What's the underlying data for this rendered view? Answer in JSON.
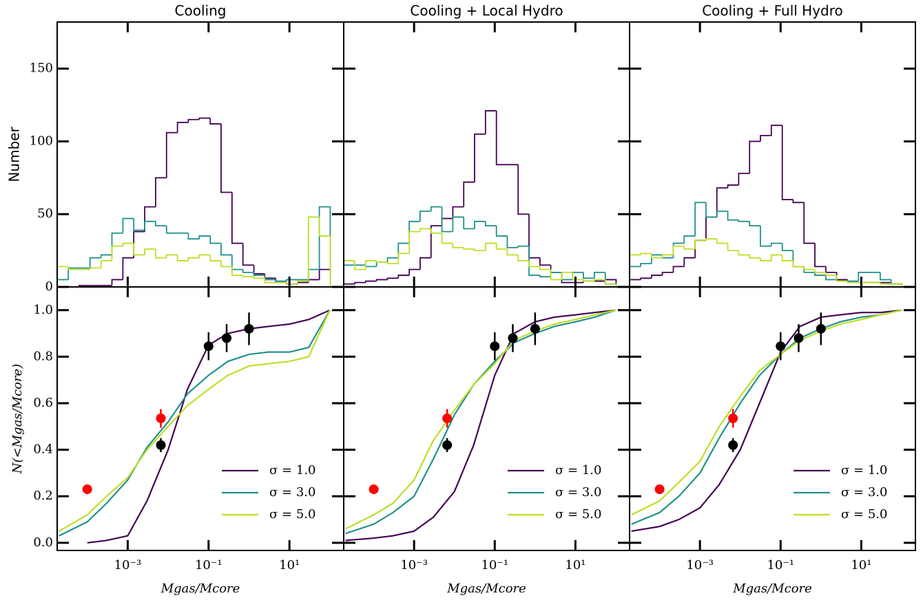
{
  "chart_data": [
    {
      "type": "histogram",
      "title": "Cooling",
      "y_label": "Number",
      "xscale": "log",
      "bins": [
        1.82e-05,
        3.39e-05,
        6.31e-05,
        0.000117,
        0.000219,
        0.000407,
        0.000759,
        0.00141,
        0.00263,
        0.0049,
        0.00912,
        0.017,
        0.0316,
        0.0589,
        0.11,
        0.204,
        0.38,
        0.708,
        1.32,
        2.45,
        4.57,
        8.51,
        15.8,
        29.5,
        55.0,
        102
      ],
      "series": [
        {
          "color": "#440154",
          "values": [
            0,
            0,
            1,
            1,
            1,
            5,
            20,
            38,
            55,
            75,
            106,
            113,
            115,
            116,
            112,
            65,
            30,
            15,
            9,
            6,
            3,
            2,
            3,
            5,
            12
          ]
        },
        {
          "color": "#21918c",
          "values": [
            5,
            13,
            13,
            20,
            22,
            37,
            47,
            39,
            45,
            42,
            37,
            37,
            33,
            35,
            30,
            22,
            12,
            10,
            8,
            5,
            4,
            5,
            5,
            12,
            55
          ]
        },
        {
          "color": "#bddf26",
          "values": [
            14,
            12,
            12,
            13,
            18,
            28,
            30,
            22,
            26,
            20,
            22,
            18,
            20,
            22,
            18,
            14,
            8,
            7,
            6,
            3,
            3,
            2,
            4,
            48,
            35
          ]
        }
      ],
      "xlim": [
        1.8e-05,
        220
      ],
      "xticks": [
        0.001,
        0.1,
        10
      ],
      "ylim": [
        0,
        182
      ],
      "yticks": [
        0,
        50,
        100,
        150
      ],
      "show_xtick_labels": false,
      "show_ytick_labels": true
    },
    {
      "type": "histogram",
      "title": "Cooling + Local Hydro",
      "xscale": "log",
      "bins": [
        1.82e-05,
        3.39e-05,
        6.31e-05,
        0.000117,
        0.000219,
        0.000407,
        0.000759,
        0.00141,
        0.00263,
        0.0049,
        0.00912,
        0.017,
        0.0316,
        0.0589,
        0.11,
        0.204,
        0.38,
        0.708,
        1.32,
        2.45,
        4.57,
        8.51,
        15.8,
        29.5,
        55.0,
        102
      ],
      "series": [
        {
          "color": "#440154",
          "values": [
            2,
            3,
            4,
            5,
            6,
            8,
            12,
            20,
            42,
            47,
            55,
            72,
            105,
            121,
            84,
            84,
            50,
            20,
            15,
            10,
            3,
            3,
            4,
            4,
            5
          ]
        },
        {
          "color": "#21918c",
          "values": [
            15,
            15,
            14,
            17,
            20,
            30,
            45,
            52,
            55,
            38,
            48,
            40,
            45,
            42,
            35,
            27,
            28,
            8,
            7,
            10,
            5,
            10,
            6,
            10,
            2
          ]
        },
        {
          "color": "#bddf26",
          "values": [
            18,
            12,
            18,
            17,
            16,
            23,
            38,
            40,
            37,
            30,
            27,
            26,
            25,
            30,
            26,
            22,
            18,
            14,
            12,
            5,
            10,
            5,
            4,
            5,
            2
          ]
        }
      ],
      "xlim": [
        1.8e-05,
        220
      ],
      "xticks": [
        0.001,
        0.1,
        10
      ],
      "ylim": [
        0,
        182
      ],
      "yticks": [
        0,
        50,
        100,
        150
      ],
      "show_xtick_labels": false,
      "show_ytick_labels": false
    },
    {
      "type": "histogram",
      "title": "Cooling + Full Hydro",
      "xscale": "log",
      "bins": [
        1.82e-05,
        3.39e-05,
        6.31e-05,
        0.000117,
        0.000219,
        0.000407,
        0.000759,
        0.00141,
        0.00263,
        0.0049,
        0.00912,
        0.017,
        0.0316,
        0.0589,
        0.11,
        0.204,
        0.38,
        0.708,
        1.32,
        2.45,
        4.57,
        8.51,
        15.8,
        29.5,
        55.0,
        102
      ],
      "series": [
        {
          "color": "#440154",
          "values": [
            5,
            6,
            8,
            10,
            14,
            20,
            32,
            48,
            68,
            70,
            78,
            100,
            104,
            111,
            60,
            58,
            30,
            14,
            10,
            5,
            3,
            3,
            3,
            3,
            2
          ]
        },
        {
          "color": "#21918c",
          "values": [
            14,
            16,
            22,
            20,
            30,
            35,
            58,
            48,
            52,
            46,
            45,
            42,
            28,
            30,
            25,
            14,
            10,
            8,
            5,
            4,
            4,
            10,
            10,
            5,
            2
          ]
        },
        {
          "color": "#bddf26",
          "values": [
            22,
            23,
            20,
            22,
            28,
            26,
            32,
            33,
            30,
            25,
            22,
            20,
            18,
            22,
            18,
            14,
            12,
            10,
            8,
            4,
            3,
            3,
            3,
            2,
            2
          ]
        }
      ],
      "xlim": [
        1.8e-05,
        220
      ],
      "xticks": [
        0.001,
        0.1,
        10
      ],
      "ylim": [
        0,
        182
      ],
      "yticks": [
        0,
        50,
        100,
        150
      ],
      "show_xtick_labels": false,
      "show_ytick_labels": false
    },
    {
      "type": "cdf",
      "x_label": "Mgas/Mcore",
      "y_label": "N(<Mgas/Mcore)",
      "xscale": "log",
      "legend": "lower right",
      "x": [
        2e-05,
        0.0001,
        0.0003,
        0.001,
        0.003,
        0.01,
        0.03,
        0.1,
        0.3,
        1,
        3,
        10,
        30,
        100
      ],
      "series": [
        {
          "name": "σ = 1.0",
          "color": "#440154",
          "values": [
            null,
            0.0,
            0.01,
            0.03,
            0.18,
            0.4,
            0.66,
            0.85,
            0.9,
            0.92,
            0.93,
            0.94,
            0.96,
            1.0
          ]
        },
        {
          "name": "σ = 3.0",
          "color": "#21918c",
          "values": [
            0.03,
            0.09,
            0.17,
            0.27,
            0.41,
            0.52,
            0.64,
            0.72,
            0.78,
            0.81,
            0.82,
            0.82,
            0.84,
            1.0
          ]
        },
        {
          "name": "σ = 5.0",
          "color": "#bddf26",
          "values": [
            0.05,
            0.12,
            0.2,
            0.28,
            0.4,
            0.5,
            0.59,
            0.66,
            0.72,
            0.76,
            0.77,
            0.78,
            0.8,
            1.0
          ]
        }
      ],
      "points": [
        {
          "color": "#000000",
          "x": [
            0.0066,
            0.1,
            0.28,
            1.0
          ],
          "y": [
            0.42,
            0.845,
            0.88,
            0.92
          ],
          "yerr": [
            0.03,
            0.06,
            0.06,
            0.07
          ]
        },
        {
          "color": "#ff0000",
          "x": [
            0.0001,
            0.0066
          ],
          "y": [
            0.23,
            0.535
          ],
          "yerr": [
            0.02,
            0.04
          ]
        }
      ],
      "xlim": [
        1.8e-05,
        220
      ],
      "xticks": [
        {
          "value": 0.001,
          "label": "10⁻³"
        },
        {
          "value": 0.1,
          "label": "10⁻¹"
        },
        {
          "value": 10,
          "label": "10¹"
        }
      ],
      "ylim": [
        -0.033,
        1.1
      ],
      "yticks": [
        {
          "value": 0,
          "label": "0.0"
        },
        0.2,
        0.4,
        0.6,
        0.8,
        {
          "value": 1,
          "label": "1.0"
        }
      ],
      "show_xtick_labels": true,
      "show_ytick_labels": true
    },
    {
      "type": "cdf",
      "x_label": "Mgas/Mcore",
      "xscale": "log",
      "legend": "lower right",
      "x": [
        2e-05,
        0.0001,
        0.0003,
        0.001,
        0.003,
        0.01,
        0.03,
        0.1,
        0.3,
        1,
        3,
        10,
        30,
        100
      ],
      "series": [
        {
          "name": "σ = 1.0",
          "color": "#440154",
          "values": [
            0.01,
            0.02,
            0.03,
            0.05,
            0.11,
            0.22,
            0.42,
            0.72,
            0.9,
            0.95,
            0.97,
            0.98,
            0.99,
            1.0
          ]
        },
        {
          "name": "σ = 3.0",
          "color": "#21918c",
          "values": [
            0.04,
            0.08,
            0.13,
            0.2,
            0.36,
            0.55,
            0.68,
            0.78,
            0.86,
            0.9,
            0.93,
            0.95,
            0.97,
            1.0
          ]
        },
        {
          "name": "σ = 5.0",
          "color": "#bddf26",
          "values": [
            0.06,
            0.12,
            0.17,
            0.27,
            0.44,
            0.57,
            0.68,
            0.77,
            0.87,
            0.91,
            0.94,
            0.96,
            0.98,
            1.0
          ]
        }
      ],
      "points": [
        {
          "color": "#000000",
          "x": [
            0.0066,
            0.1,
            0.28,
            1.0
          ],
          "y": [
            0.42,
            0.845,
            0.88,
            0.92
          ],
          "yerr": [
            0.03,
            0.06,
            0.06,
            0.07
          ]
        },
        {
          "color": "#ff0000",
          "x": [
            0.0001,
            0.0066
          ],
          "y": [
            0.23,
            0.535
          ],
          "yerr": [
            0.02,
            0.04
          ]
        }
      ],
      "xlim": [
        1.8e-05,
        220
      ],
      "xticks": [
        {
          "value": 0.001,
          "label": "10⁻³"
        },
        {
          "value": 0.1,
          "label": "10⁻¹"
        },
        {
          "value": 10,
          "label": "10¹"
        }
      ],
      "ylim": [
        -0.033,
        1.1
      ],
      "yticks": [
        0,
        0.2,
        0.4,
        0.6,
        0.8,
        1
      ],
      "show_xtick_labels": true,
      "show_ytick_labels": false
    },
    {
      "type": "cdf",
      "x_label": "Mgas/Mcore",
      "xscale": "log",
      "legend": "lower right",
      "x": [
        2e-05,
        0.0001,
        0.0003,
        0.001,
        0.003,
        0.01,
        0.03,
        0.1,
        0.3,
        1,
        3,
        10,
        30,
        100
      ],
      "series": [
        {
          "name": "σ = 1.0",
          "color": "#440154",
          "values": [
            0.05,
            0.07,
            0.1,
            0.15,
            0.25,
            0.4,
            0.6,
            0.82,
            0.93,
            0.97,
            0.98,
            0.99,
            0.99,
            1.0
          ]
        },
        {
          "name": "σ = 3.0",
          "color": "#21918c",
          "values": [
            0.08,
            0.13,
            0.2,
            0.3,
            0.45,
            0.6,
            0.72,
            0.81,
            0.88,
            0.92,
            0.95,
            0.97,
            0.98,
            1.0
          ]
        },
        {
          "name": "σ = 5.0",
          "color": "#bddf26",
          "values": [
            0.12,
            0.18,
            0.26,
            0.35,
            0.5,
            0.63,
            0.74,
            0.81,
            0.87,
            0.91,
            0.94,
            0.96,
            0.98,
            1.0
          ]
        }
      ],
      "points": [
        {
          "color": "#000000",
          "x": [
            0.0066,
            0.1,
            0.28,
            1.0
          ],
          "y": [
            0.42,
            0.845,
            0.88,
            0.92
          ],
          "yerr": [
            0.03,
            0.06,
            0.06,
            0.07
          ]
        },
        {
          "color": "#ff0000",
          "x": [
            0.0001,
            0.0066
          ],
          "y": [
            0.23,
            0.535
          ],
          "yerr": [
            0.02,
            0.04
          ]
        }
      ],
      "xlim": [
        1.8e-05,
        220
      ],
      "xticks": [
        {
          "value": 0.001,
          "label": "10⁻³"
        },
        {
          "value": 0.1,
          "label": "10⁻¹"
        },
        {
          "value": 10,
          "label": "10¹"
        }
      ],
      "ylim": [
        -0.033,
        1.1
      ],
      "yticks": [
        0,
        0.2,
        0.4,
        0.6,
        0.8,
        1
      ],
      "show_xtick_labels": true,
      "show_ytick_labels": false
    }
  ]
}
